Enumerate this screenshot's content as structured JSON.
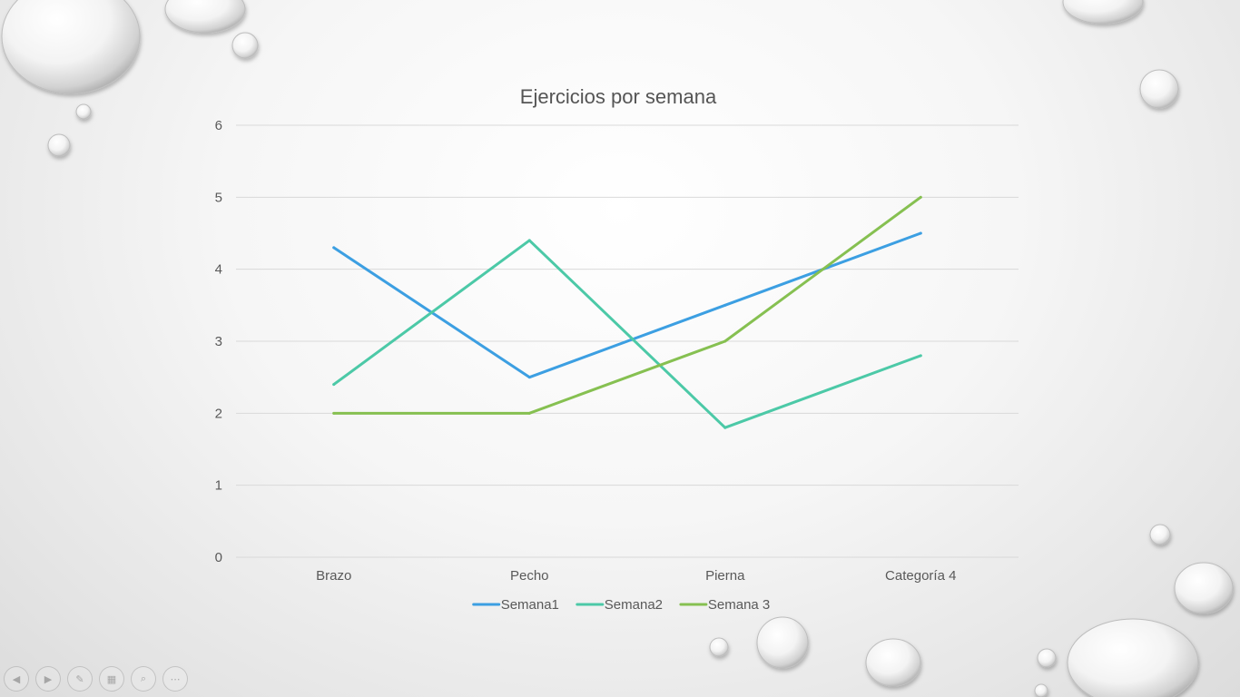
{
  "chart_data": {
    "type": "line",
    "title": "Ejercicios por semana",
    "categories": [
      "Brazo",
      "Pecho",
      "Pierna",
      "Categoría 4"
    ],
    "ylim": [
      0,
      6
    ],
    "yticks": [
      0,
      1,
      2,
      3,
      4,
      5,
      6
    ],
    "grid": true,
    "legend_position": "bottom",
    "series": [
      {
        "name": "Semana1",
        "values": [
          4.3,
          2.5,
          3.5,
          4.5
        ],
        "color": "#3c9fe2"
      },
      {
        "name": "Semana2",
        "values": [
          2.4,
          4.4,
          1.8,
          2.8
        ],
        "color": "#4cc9a7"
      },
      {
        "name": "Semana 3",
        "values": [
          2,
          2,
          3,
          5
        ],
        "color": "#86c051"
      }
    ]
  },
  "controls": [
    {
      "name": "previous-icon",
      "glyph": "◀"
    },
    {
      "name": "next-icon",
      "glyph": "▶"
    },
    {
      "name": "pen-icon",
      "glyph": "✎"
    },
    {
      "name": "slides-grid-icon",
      "glyph": "▦"
    },
    {
      "name": "zoom-icon",
      "glyph": "⌕"
    },
    {
      "name": "more-icon",
      "glyph": "⋯"
    }
  ]
}
